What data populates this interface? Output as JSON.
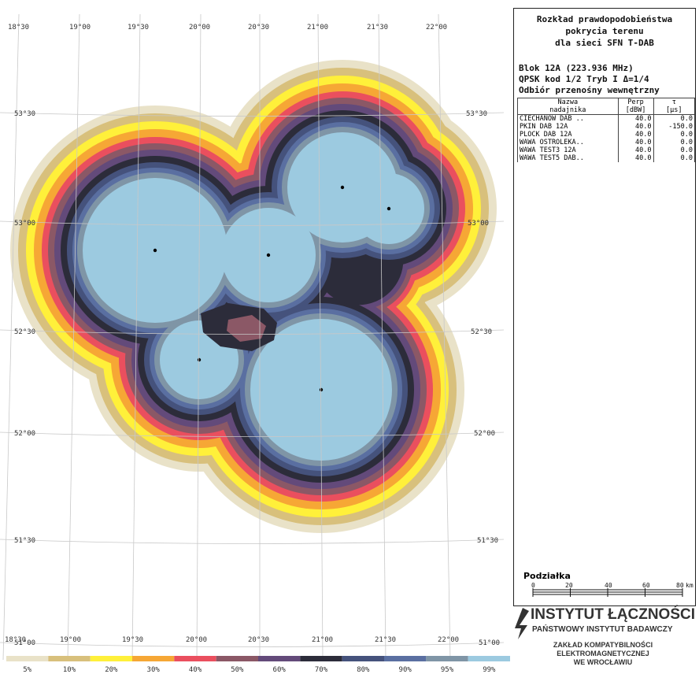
{
  "map": {
    "top_lon_labels": [
      "18°30",
      "19°00",
      "19°30",
      "20°00",
      "20°30",
      "21°00",
      "21°30",
      "22°00"
    ],
    "bottom_lon_labels": [
      "18°30",
      "19°00",
      "19°30",
      "20°00",
      "20°30",
      "21°00",
      "21°30",
      "22°00"
    ],
    "left_lat_labels": [
      "53°30",
      "53°00",
      "52°30",
      "52°00",
      "51°30",
      "51°00"
    ],
    "right_lat_labels": [
      "53°30",
      "53°00",
      "52°30",
      "52°00",
      "51°30",
      "51°00"
    ]
  },
  "legend": {
    "items": [
      {
        "label": "5%",
        "color": "#e9e2c8"
      },
      {
        "label": "10%",
        "color": "#d8c07c"
      },
      {
        "label": "20%",
        "color": "#fff03a"
      },
      {
        "label": "30%",
        "color": "#f6a735"
      },
      {
        "label": "40%",
        "color": "#ea4f5e"
      },
      {
        "label": "50%",
        "color": "#8b5866"
      },
      {
        "label": "60%",
        "color": "#634a7a"
      },
      {
        "label": "70%",
        "color": "#2c2c3a"
      },
      {
        "label": "80%",
        "color": "#45527c"
      },
      {
        "label": "90%",
        "color": "#5a6fa1"
      },
      {
        "label": "95%",
        "color": "#7f95a6"
      },
      {
        "label": "99%",
        "color": "#9ccae0"
      }
    ]
  },
  "panel": {
    "title_lines": [
      "Rozkład prawdopodobieństwa",
      "pokrycia terenu",
      "dla sieci SFN T-DAB"
    ],
    "block": "Blok 12A (223.936 MHz)",
    "mode": "QPSK kod 1/2 Tryb I Δ=1/4",
    "reception": "Odbiór przenośny wewnętrzny",
    "table": {
      "headers": [
        "Nazwa\nnadajnika",
        "Perp\n[dBW]",
        "τ\n[µs]"
      ],
      "h_name_1": "Nazwa",
      "h_name_2": "nadajnika",
      "h_perp_1": "Perp",
      "h_perp_2": "[dBW]",
      "h_tau_1": "τ",
      "h_tau_2": "[µs]",
      "rows": [
        {
          "name": "CIECHANOW DAB ..",
          "perp": "40.0",
          "tau": "0.0"
        },
        {
          "name": "PKIN DAB 12A",
          "perp": "40.0",
          "tau": "-150.0"
        },
        {
          "name": "PLOCK DAB 12A",
          "perp": "40.0",
          "tau": "0.0"
        },
        {
          "name": "WAWA OSTROLEKA..",
          "perp": "40.0",
          "tau": "0.0"
        },
        {
          "name": "WAWA TEST3 12A",
          "perp": "40.0",
          "tau": "0.0"
        },
        {
          "name": "WAWA TEST5 DAB..",
          "perp": "40.0",
          "tau": "0.0"
        }
      ]
    },
    "scale": {
      "title": "Podziałka",
      "ticks": [
        "0",
        "20",
        "40",
        "60",
        "80"
      ],
      "unit": "km"
    }
  },
  "institute": {
    "name": "INSTYTUT ŁĄCZNOŚCI",
    "subtitle": "PAŃSTWOWY INSTYTUT BADAWCZY",
    "lab_lines": [
      "ZAKŁAD KOMPATYBILNOŚCI",
      "ELEKTROMAGNETYCZNEJ",
      "WE WROCŁAWIU"
    ]
  }
}
